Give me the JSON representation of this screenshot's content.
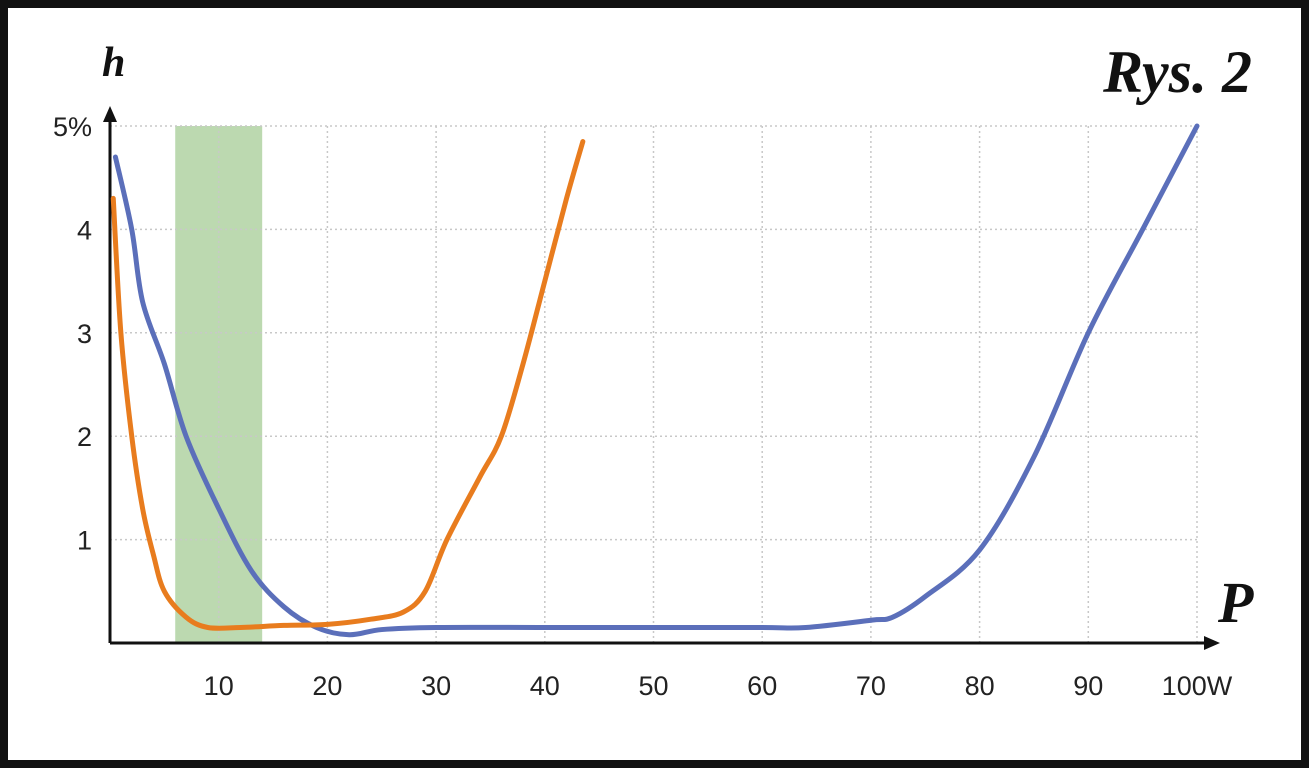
{
  "chart_data": {
    "type": "line",
    "title": "Rys. 2",
    "y_label": "h",
    "x_label": "P",
    "xlim": [
      0,
      100
    ],
    "ylim": [
      0,
      5
    ],
    "xticks": [
      10,
      20,
      30,
      40,
      50,
      60,
      70,
      80,
      90,
      {
        "value": 100,
        "label": "100W"
      }
    ],
    "yticks": [
      1,
      2,
      3,
      4,
      {
        "value": 5,
        "label": "5%"
      }
    ],
    "grid": true,
    "highlight": {
      "x": [
        6,
        14
      ],
      "color": "#bcd9b0"
    },
    "series": [
      {
        "color": "#5b6fba",
        "x": [
          0.5,
          2,
          3,
          5,
          7,
          10,
          13,
          16,
          19,
          22,
          25,
          30,
          40,
          50,
          60,
          64,
          70,
          72,
          75,
          80,
          85,
          90,
          95,
          100
        ],
        "values": [
          4.7,
          4.0,
          3.3,
          2.7,
          2.0,
          1.3,
          0.7,
          0.35,
          0.15,
          0.08,
          0.13,
          0.15,
          0.15,
          0.15,
          0.15,
          0.15,
          0.22,
          0.25,
          0.45,
          0.9,
          1.8,
          3.0,
          4.0,
          5.0
        ]
      },
      {
        "color": "#e87c1e",
        "x": [
          0.3,
          1,
          2,
          3,
          4,
          5,
          7,
          9,
          12,
          16,
          20,
          24,
          27,
          29,
          31,
          34,
          36,
          38,
          40,
          42,
          43.5
        ],
        "values": [
          4.3,
          3.0,
          2.0,
          1.3,
          0.85,
          0.5,
          0.25,
          0.15,
          0.15,
          0.17,
          0.18,
          0.23,
          0.3,
          0.5,
          1.0,
          1.6,
          2.0,
          2.7,
          3.5,
          4.3,
          4.85
        ]
      }
    ]
  }
}
